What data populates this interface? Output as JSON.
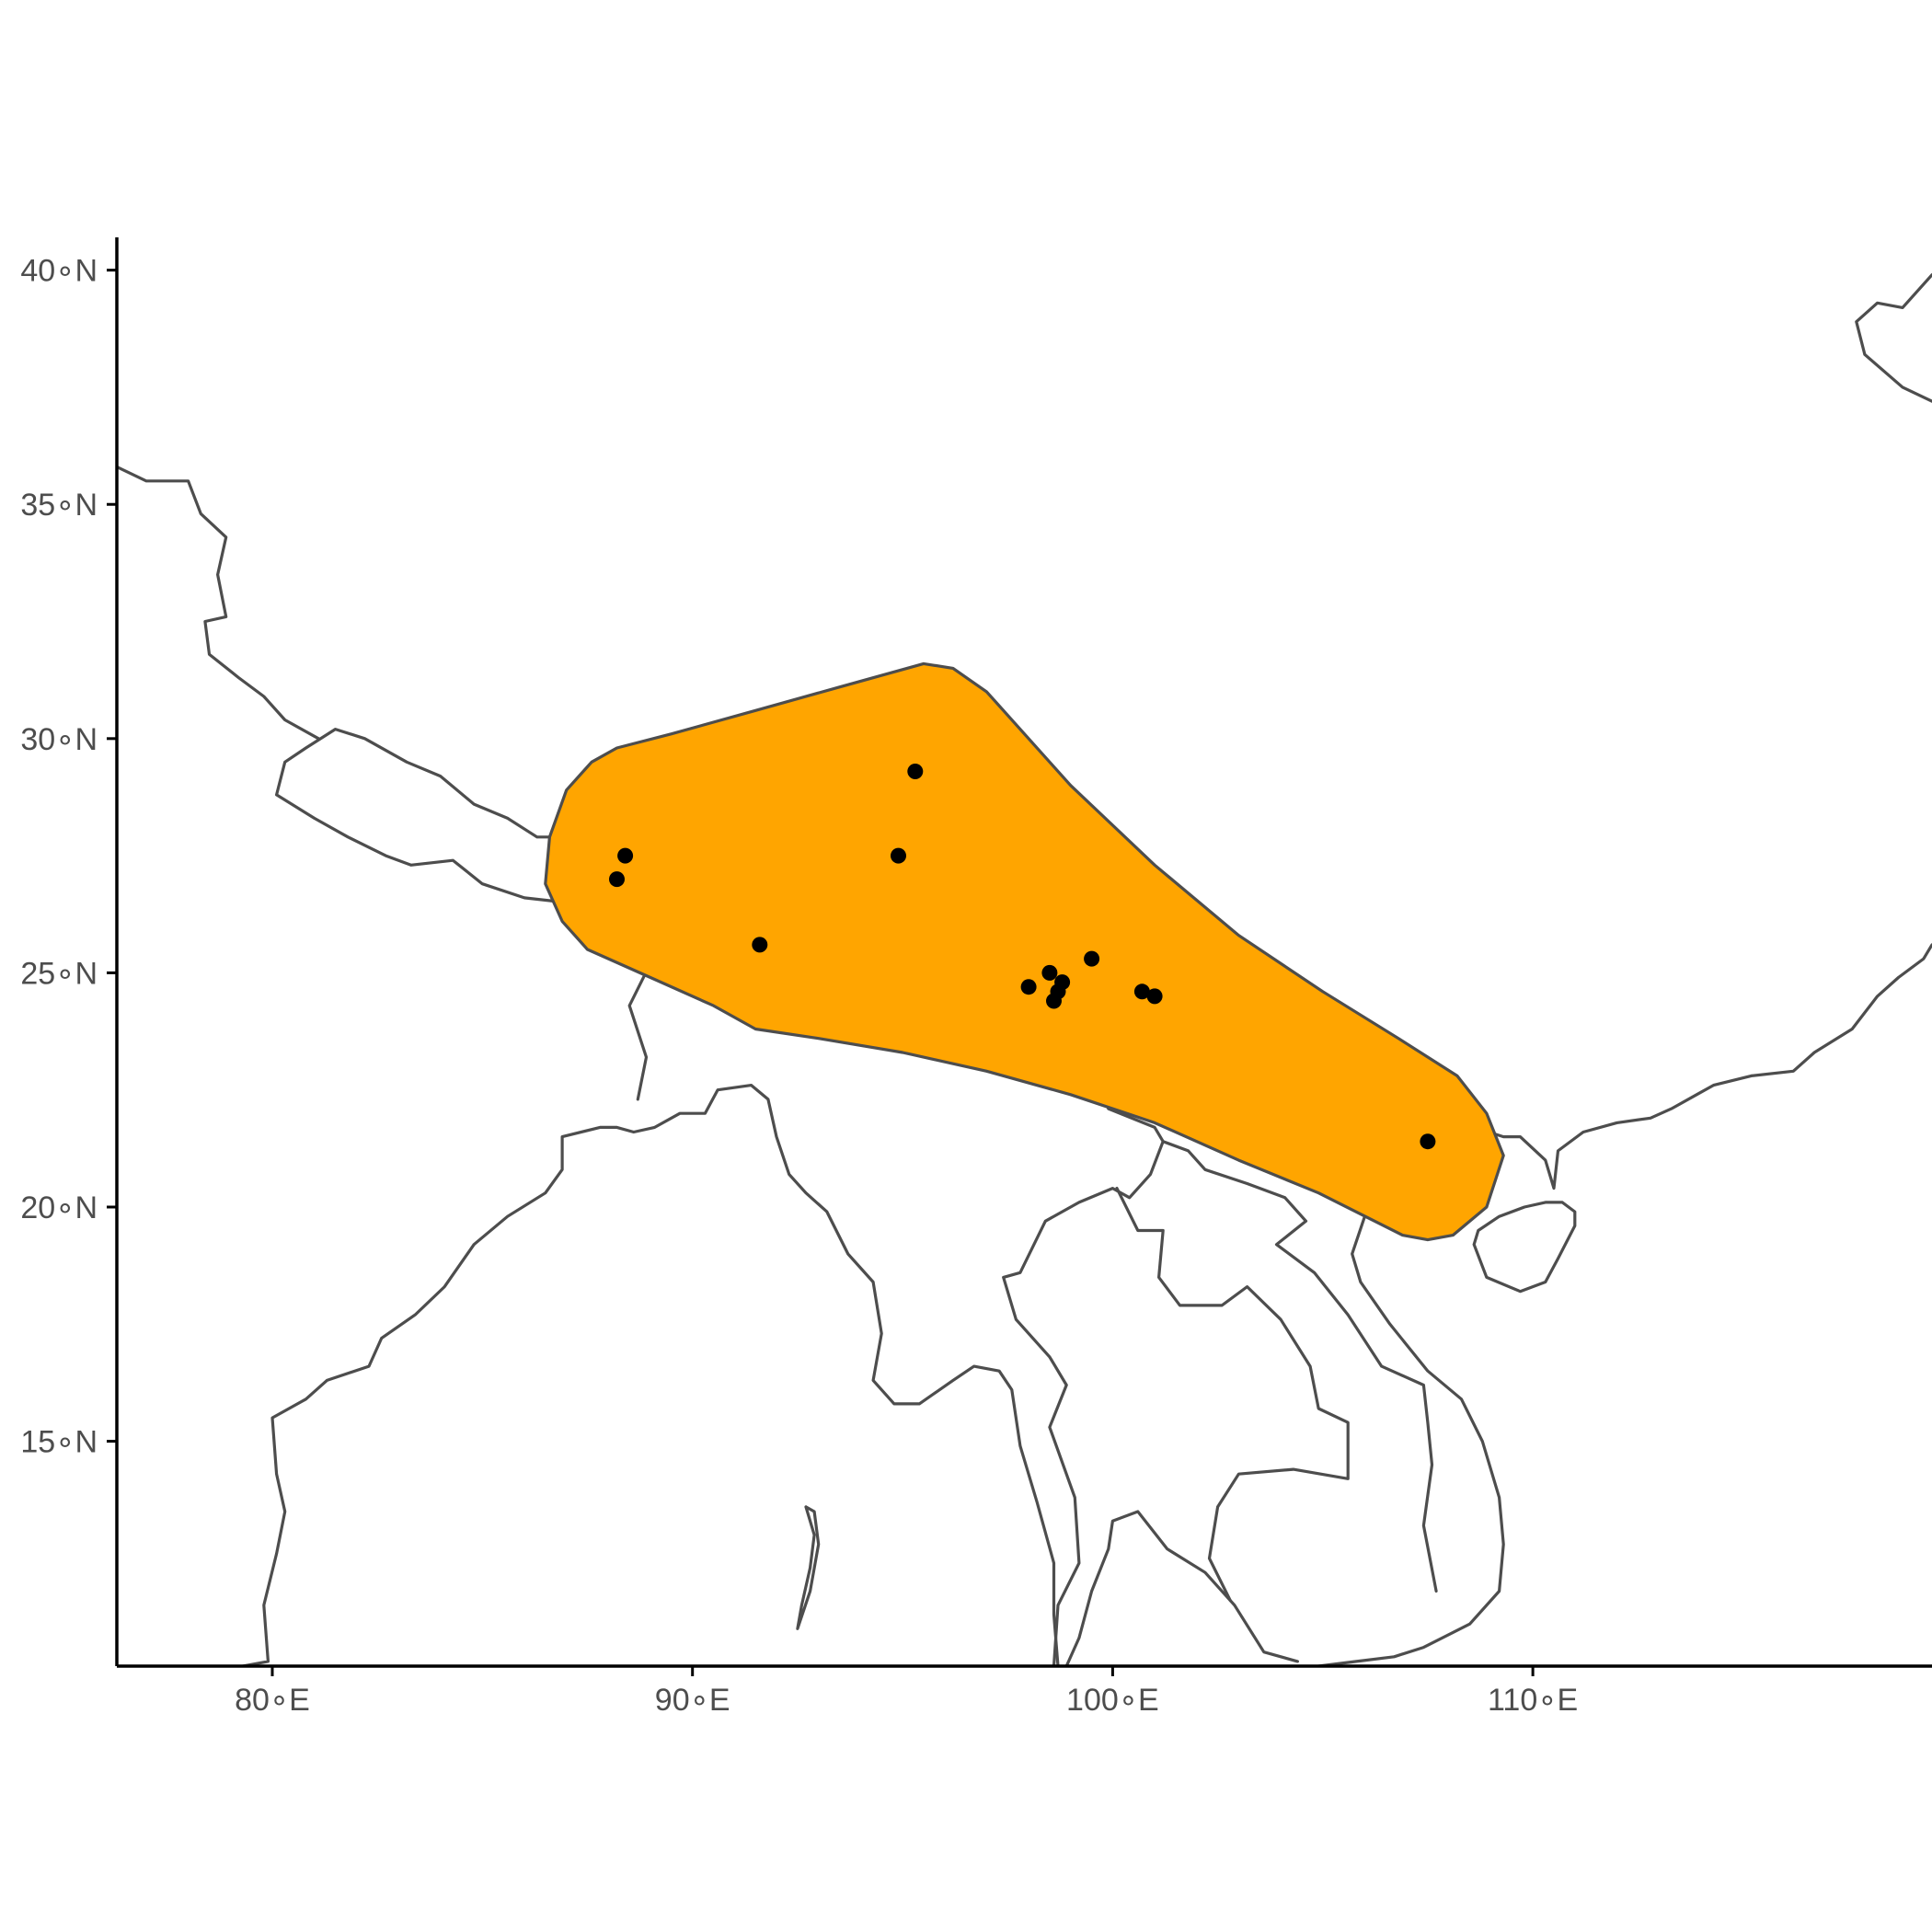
{
  "map": {
    "projection": "equirectangular",
    "extent": {
      "lon": [
        76.3,
        119.5
      ],
      "lat": [
        10.2,
        40.7
      ]
    },
    "colors": {
      "background": "#ffffff",
      "coastline": "#4d4d4d",
      "range_fill": "#ffa500",
      "range_stroke": "#4d4d4d",
      "points": "#000000",
      "axis": "#000000",
      "tick_label": "#4d4d4d"
    },
    "x_ticks": [
      {
        "value": 80,
        "label": "80∘E"
      },
      {
        "value": 90,
        "label": "90∘E"
      },
      {
        "value": 100,
        "label": "100∘E"
      },
      {
        "value": 110,
        "label": "110∘E"
      }
    ],
    "y_ticks": [
      {
        "value": 15,
        "label": "15∘N"
      },
      {
        "value": 20,
        "label": "20∘N"
      },
      {
        "value": 25,
        "label": "25∘N"
      },
      {
        "value": 30,
        "label": "30∘N"
      },
      {
        "value": 35,
        "label": "35∘N"
      },
      {
        "value": 40,
        "label": "40∘N"
      }
    ],
    "range_polygon_lonlat": [
      [
        95.5,
        31.6
      ],
      [
        96.2,
        31.5
      ],
      [
        97.0,
        31.0
      ],
      [
        99.0,
        29.0
      ],
      [
        101.0,
        27.3
      ],
      [
        103.0,
        25.8
      ],
      [
        105.0,
        24.6
      ],
      [
        106.8,
        23.6
      ],
      [
        108.2,
        22.8
      ],
      [
        108.9,
        22.0
      ],
      [
        109.3,
        21.1
      ],
      [
        108.9,
        20.0
      ],
      [
        108.1,
        19.4
      ],
      [
        107.5,
        19.3
      ],
      [
        106.9,
        19.4
      ],
      [
        104.9,
        20.3
      ],
      [
        103.0,
        21.0
      ],
      [
        101.0,
        21.8
      ],
      [
        99.0,
        22.4
      ],
      [
        97.0,
        22.9
      ],
      [
        95.0,
        23.3
      ],
      [
        93.0,
        23.6
      ],
      [
        91.5,
        23.8
      ],
      [
        90.5,
        24.3
      ],
      [
        89.0,
        24.9
      ],
      [
        87.5,
        25.5
      ],
      [
        86.9,
        26.1
      ],
      [
        86.5,
        26.9
      ],
      [
        86.6,
        27.9
      ],
      [
        87.0,
        28.9
      ],
      [
        87.6,
        29.5
      ],
      [
        88.2,
        29.8
      ],
      [
        89.5,
        30.1
      ],
      [
        91.5,
        30.6
      ],
      [
        93.5,
        31.1
      ]
    ],
    "occurrence_points": [
      {
        "lon": 95.3,
        "lat": 29.3
      },
      {
        "lon": 88.4,
        "lat": 27.5
      },
      {
        "lon": 88.2,
        "lat": 27.0
      },
      {
        "lon": 94.9,
        "lat": 27.5
      },
      {
        "lon": 91.6,
        "lat": 25.6
      },
      {
        "lon": 99.5,
        "lat": 25.3
      },
      {
        "lon": 98.5,
        "lat": 25.0
      },
      {
        "lon": 98.8,
        "lat": 24.8
      },
      {
        "lon": 98.0,
        "lat": 24.7
      },
      {
        "lon": 98.7,
        "lat": 24.6
      },
      {
        "lon": 98.6,
        "lat": 24.4
      },
      {
        "lon": 100.7,
        "lat": 24.6
      },
      {
        "lon": 101.0,
        "lat": 24.5
      },
      {
        "lon": 107.5,
        "lat": 21.4
      }
    ],
    "coastlines_lonlat": {
      "indian-subcontinent-coast": [
        [
          79.3,
          10.2
        ],
        [
          79.9,
          10.3
        ],
        [
          79.8,
          11.5
        ],
        [
          80.1,
          12.6
        ],
        [
          80.3,
          13.5
        ],
        [
          80.1,
          14.3
        ],
        [
          80.0,
          15.5
        ],
        [
          80.8,
          15.9
        ],
        [
          81.3,
          16.3
        ],
        [
          82.3,
          16.6
        ],
        [
          82.6,
          17.2
        ],
        [
          83.4,
          17.7
        ],
        [
          84.1,
          18.3
        ],
        [
          84.8,
          19.2
        ],
        [
          85.6,
          19.8
        ],
        [
          86.5,
          20.3
        ],
        [
          86.9,
          20.8
        ],
        [
          86.9,
          21.5
        ],
        [
          87.8,
          21.7
        ],
        [
          88.2,
          21.7
        ],
        [
          88.6,
          21.6
        ],
        [
          89.1,
          21.7
        ],
        [
          89.7,
          22.0
        ],
        [
          90.3,
          22.0
        ],
        [
          90.6,
          22.5
        ],
        [
          91.4,
          22.6
        ],
        [
          91.8,
          22.3
        ],
        [
          92.0,
          21.5
        ],
        [
          92.3,
          20.7
        ],
        [
          92.7,
          20.3
        ],
        [
          93.2,
          19.9
        ],
        [
          93.7,
          19.0
        ],
        [
          94.3,
          18.4
        ],
        [
          94.5,
          17.3
        ],
        [
          94.3,
          16.3
        ],
        [
          94.8,
          15.8
        ],
        [
          95.4,
          15.8
        ],
        [
          96.2,
          16.3
        ],
        [
          96.7,
          16.6
        ],
        [
          97.3,
          16.5
        ],
        [
          97.6,
          16.1
        ],
        [
          97.8,
          14.9
        ],
        [
          98.2,
          13.7
        ],
        [
          98.6,
          12.4
        ],
        [
          98.6,
          11.3
        ],
        [
          98.7,
          10.2
        ]
      ],
      "thai-malay-coast": [
        [
          98.9,
          10.2
        ],
        [
          99.2,
          10.8
        ],
        [
          99.5,
          11.8
        ],
        [
          99.9,
          12.7
        ],
        [
          100.0,
          13.3
        ],
        [
          100.6,
          13.5
        ],
        [
          101.3,
          12.7
        ],
        [
          102.2,
          12.2
        ],
        [
          102.9,
          11.5
        ],
        [
          103.6,
          10.5
        ],
        [
          104.4,
          10.3
        ]
      ],
      "indochina-coast": [
        [
          104.9,
          10.2
        ],
        [
          105.8,
          10.3
        ],
        [
          106.7,
          10.4
        ],
        [
          107.4,
          10.6
        ],
        [
          108.5,
          11.1
        ],
        [
          109.2,
          11.8
        ],
        [
          109.3,
          12.8
        ],
        [
          109.2,
          13.8
        ],
        [
          108.8,
          15.0
        ],
        [
          108.3,
          15.9
        ],
        [
          107.5,
          16.5
        ],
        [
          106.6,
          17.5
        ],
        [
          105.9,
          18.4
        ],
        [
          105.7,
          19.0
        ],
        [
          106.0,
          19.8
        ],
        [
          106.6,
          20.3
        ],
        [
          107.1,
          20.9
        ],
        [
          107.9,
          21.5
        ],
        [
          108.6,
          21.7
        ],
        [
          109.3,
          21.5
        ],
        [
          109.7,
          21.5
        ],
        [
          110.3,
          21.0
        ],
        [
          110.5,
          20.4
        ],
        [
          110.6,
          21.2
        ],
        [
          111.2,
          21.6
        ],
        [
          112.0,
          21.8
        ],
        [
          112.8,
          21.9
        ],
        [
          113.3,
          22.1
        ],
        [
          113.9,
          22.4
        ],
        [
          114.3,
          22.6
        ],
        [
          115.2,
          22.8
        ],
        [
          116.2,
          22.9
        ],
        [
          116.7,
          23.3
        ],
        [
          117.6,
          23.8
        ],
        [
          118.2,
          24.5
        ],
        [
          118.7,
          24.9
        ],
        [
          119.3,
          25.3
        ],
        [
          119.5,
          25.6
        ]
      ],
      "hainan-island": [
        [
          108.6,
          19.2
        ],
        [
          108.9,
          18.5
        ],
        [
          109.7,
          18.2
        ],
        [
          110.3,
          18.4
        ],
        [
          110.6,
          18.9
        ],
        [
          111.0,
          19.6
        ],
        [
          111.0,
          19.9
        ],
        [
          110.7,
          20.1
        ],
        [
          110.3,
          20.1
        ],
        [
          109.8,
          20.0
        ],
        [
          109.2,
          19.8
        ],
        [
          108.7,
          19.5
        ],
        [
          108.6,
          19.2
        ]
      ],
      "nepal-border": [
        [
          80.1,
          28.8
        ],
        [
          80.3,
          29.5
        ],
        [
          80.8,
          29.8
        ],
        [
          81.5,
          30.2
        ],
        [
          82.2,
          30.0
        ],
        [
          83.2,
          29.5
        ],
        [
          84.0,
          29.2
        ],
        [
          84.8,
          28.6
        ],
        [
          85.6,
          28.3
        ],
        [
          86.3,
          27.9
        ],
        [
          87.2,
          27.9
        ],
        [
          88.1,
          27.8
        ],
        [
          88.2,
          27.0
        ],
        [
          87.9,
          26.4
        ],
        [
          87.0,
          26.5
        ],
        [
          86.0,
          26.6
        ],
        [
          85.0,
          26.9
        ],
        [
          84.3,
          27.4
        ],
        [
          83.3,
          27.3
        ],
        [
          82.7,
          27.5
        ],
        [
          81.8,
          27.9
        ],
        [
          81.0,
          28.3
        ],
        [
          80.1,
          28.8
        ]
      ],
      "india-north-border": [
        [
          76.3,
          35.8
        ],
        [
          77.0,
          35.5
        ],
        [
          78.0,
          35.5
        ],
        [
          78.3,
          34.8
        ],
        [
          78.9,
          34.3
        ],
        [
          78.7,
          33.5
        ],
        [
          78.9,
          32.6
        ],
        [
          78.4,
          32.5
        ],
        [
          78.5,
          31.8
        ],
        [
          79.2,
          31.3
        ],
        [
          79.8,
          30.9
        ],
        [
          80.3,
          30.4
        ],
        [
          81.1,
          30.0
        ]
      ],
      "myanmar-east-border": [
        [
          97.6,
          28.4
        ],
        [
          98.2,
          27.6
        ],
        [
          98.7,
          26.8
        ],
        [
          98.3,
          25.8
        ],
        [
          97.8,
          24.9
        ],
        [
          97.6,
          24.0
        ],
        [
          98.4,
          24.1
        ],
        [
          98.9,
          23.2
        ],
        [
          99.5,
          22.9
        ],
        [
          99.9,
          22.1
        ],
        [
          101.0,
          21.7
        ],
        [
          101.2,
          21.4
        ],
        [
          100.9,
          20.7
        ],
        [
          100.4,
          20.2
        ],
        [
          100.0,
          20.4
        ],
        [
          99.2,
          20.1
        ],
        [
          98.4,
          19.7
        ],
        [
          97.8,
          18.6
        ],
        [
          97.4,
          18.5
        ],
        [
          97.7,
          17.6
        ],
        [
          98.5,
          16.8
        ],
        [
          98.9,
          16.2
        ],
        [
          98.5,
          15.3
        ],
        [
          99.1,
          13.8
        ],
        [
          99.2,
          12.4
        ],
        [
          98.7,
          11.5
        ],
        [
          98.6,
          10.2
        ]
      ],
      "laos-thai-border": [
        [
          100.1,
          20.4
        ],
        [
          100.6,
          19.5
        ],
        [
          101.2,
          19.5
        ],
        [
          101.1,
          18.5
        ],
        [
          101.6,
          17.9
        ],
        [
          102.6,
          17.9
        ],
        [
          103.2,
          18.3
        ],
        [
          104.0,
          17.6
        ],
        [
          104.7,
          16.6
        ],
        [
          104.9,
          15.7
        ],
        [
          105.6,
          15.4
        ],
        [
          105.6,
          14.2
        ],
        [
          104.3,
          14.4
        ],
        [
          103.0,
          14.3
        ],
        [
          102.5,
          13.6
        ],
        [
          102.3,
          12.5
        ],
        [
          102.8,
          11.6
        ]
      ],
      "vietnam-laos-border": [
        [
          101.2,
          21.4
        ],
        [
          101.8,
          21.2
        ],
        [
          102.2,
          20.8
        ],
        [
          103.2,
          20.5
        ],
        [
          104.1,
          20.2
        ],
        [
          104.6,
          19.7
        ],
        [
          103.9,
          19.2
        ],
        [
          104.8,
          18.6
        ],
        [
          105.6,
          17.7
        ],
        [
          106.4,
          16.6
        ],
        [
          107.4,
          16.2
        ],
        [
          107.5,
          15.4
        ],
        [
          107.6,
          14.5
        ],
        [
          107.4,
          13.2
        ],
        [
          107.7,
          11.8
        ]
      ],
      "korea-bohai-coast": [
        [
          119.5,
          39.9
        ],
        [
          118.8,
          39.2
        ],
        [
          118.2,
          39.3
        ],
        [
          117.7,
          38.9
        ],
        [
          117.9,
          38.2
        ],
        [
          118.8,
          37.5
        ],
        [
          119.5,
          37.2
        ]
      ],
      "bangladesh-border": [
        [
          88.7,
          26.3
        ],
        [
          89.0,
          25.2
        ],
        [
          88.5,
          24.3
        ],
        [
          88.9,
          23.2
        ],
        [
          88.7,
          22.3
        ]
      ],
      "andaman-islands": [
        [
          92.7,
          13.6
        ],
        [
          92.9,
          13.0
        ],
        [
          92.8,
          12.3
        ],
        [
          92.6,
          11.5
        ],
        [
          92.5,
          11.0
        ],
        [
          92.8,
          11.8
        ],
        [
          93.0,
          12.8
        ],
        [
          92.9,
          13.5
        ],
        [
          92.7,
          13.6
        ]
      ]
    }
  }
}
